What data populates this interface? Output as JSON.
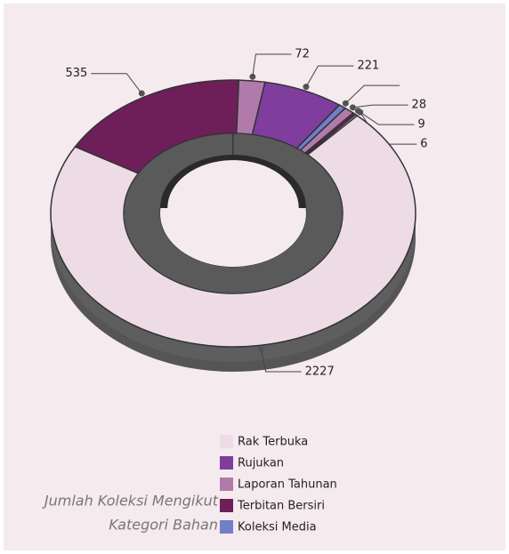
{
  "chart_data": {
    "type": "donut",
    "values": [
      535,
      72,
      221,
      20,
      28,
      9,
      6,
      2227
    ],
    "value_labels": [
      "535",
      "72",
      "221",
      null,
      "28",
      "9",
      "6",
      "2227"
    ],
    "colors": [
      "#6e1f5a",
      "#b07aab",
      "#7f3d9e",
      "#6f7fc9",
      "#b07aab",
      "#6e1f5a",
      "#eddce6",
      "#eddce6"
    ],
    "legend": [
      {
        "name": "Rak Terbuka",
        "color": "#eddce6"
      },
      {
        "name": "Rujukan",
        "color": "#7f3d9e"
      },
      {
        "name": "Laporan Tahunan",
        "color": "#b07aab"
      },
      {
        "name": "Terbitan Bersiri",
        "color": "#6e1f5a"
      },
      {
        "name": "Koleksi Media",
        "color": "#6f7fc9"
      }
    ],
    "caption": [
      "Jumlah Koleksi Mengikut",
      "Kategori  Bahan"
    ]
  }
}
